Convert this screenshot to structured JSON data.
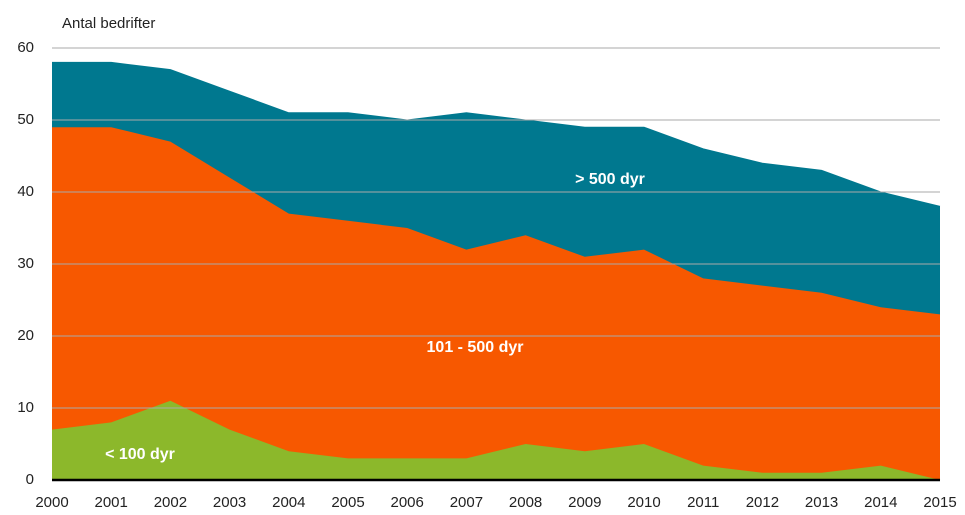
{
  "chart_data": {
    "type": "stacked_area",
    "y_axis_label": "Antal bedrifter",
    "categories": [
      "2000",
      "2001",
      "2002",
      "2003",
      "2004",
      "2005",
      "2006",
      "2007",
      "2008",
      "2009",
      "2010",
      "2011",
      "2012",
      "2013",
      "2014",
      "2015"
    ],
    "series": [
      {
        "name": "< 100 dyr",
        "color": "#8cb82b",
        "values": [
          7,
          8,
          11,
          7,
          4,
          3,
          3,
          3,
          5,
          4,
          5,
          2,
          1,
          1,
          2,
          0
        ]
      },
      {
        "name": "101 - 500 dyr",
        "color": "#f75800",
        "values": [
          42,
          41,
          36,
          35,
          33,
          33,
          32,
          29,
          29,
          27,
          27,
          26,
          26,
          25,
          22,
          23
        ]
      },
      {
        "name": "> 500  dyr",
        "color": "#00788f",
        "values": [
          9,
          9,
          10,
          12,
          14,
          15,
          15,
          19,
          16,
          18,
          17,
          18,
          17,
          17,
          16,
          15
        ]
      }
    ],
    "ylim": [
      0,
      60
    ],
    "yticks": [
      0,
      10,
      20,
      30,
      40,
      50,
      60
    ],
    "grid": true
  }
}
